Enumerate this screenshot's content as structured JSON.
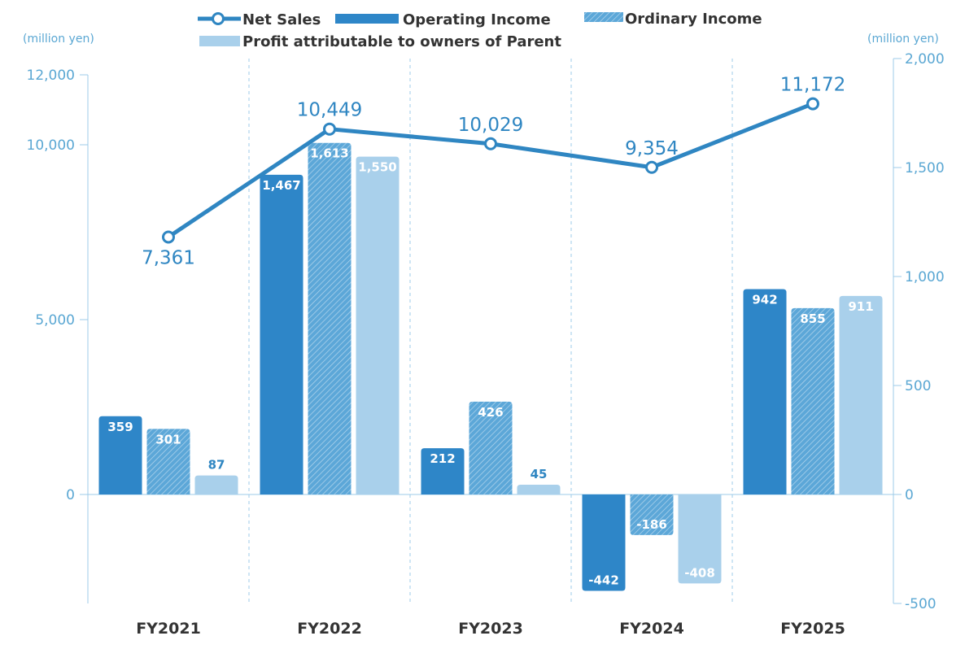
{
  "chart_data": {
    "type": "bar",
    "categories": [
      "FY2021",
      "FY2022",
      "FY2023",
      "FY2024",
      "FY2025"
    ],
    "left_axis": {
      "unit": "(million yen)",
      "ylim": [
        -2500,
        12500
      ],
      "ticks": [
        0,
        5000,
        10000,
        12000
      ],
      "tick_labels": [
        "0",
        "5,000",
        "10,000",
        "12,000"
      ]
    },
    "right_axis": {
      "unit": "(million yen)",
      "ylim": [
        -500,
        2000
      ],
      "ticks": [
        -500,
        0,
        500,
        1000,
        1500,
        2000
      ],
      "tick_labels": [
        "-500",
        "0",
        "500",
        "1,000",
        "1,500",
        "2,000"
      ]
    },
    "line_series": {
      "name": "Net Sales",
      "axis": "left",
      "values": [
        7361,
        10449,
        10029,
        9354,
        11172
      ],
      "labels": [
        "7,361",
        "10,449",
        "10,029",
        "9,354",
        "11,172"
      ],
      "color": "#2f86c2"
    },
    "series": [
      {
        "name": "Operating Income",
        "axis": "right",
        "values": [
          359,
          1467,
          212,
          -442,
          942
        ],
        "labels": [
          "359",
          "1,467",
          "212",
          "-442",
          "942"
        ],
        "color": "#2e86c8",
        "pattern": "solid"
      },
      {
        "name": "Ordinary Income",
        "axis": "right",
        "values": [
          301,
          1613,
          426,
          -186,
          855
        ],
        "labels": [
          "301",
          "1,613",
          "426",
          "-186",
          "855"
        ],
        "color": "#5ca7d8",
        "pattern": "hatched"
      },
      {
        "name": "Profit attributable to owners of Parent",
        "axis": "right",
        "values": [
          87,
          1550,
          45,
          -408,
          911
        ],
        "labels": [
          "87",
          "1,550",
          "45",
          "-408",
          "911"
        ],
        "color": "#a9d0eb",
        "pattern": "solid"
      }
    ],
    "legend_position": "top-center",
    "grid": "vertical dashed separators between categories"
  }
}
